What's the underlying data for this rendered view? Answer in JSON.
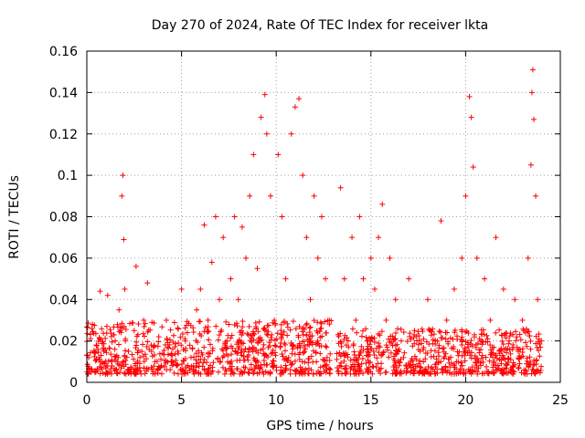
{
  "chart_data": {
    "type": "scatter",
    "title": "Day 270 of 2024, Rate Of TEC Index for receiver lkta",
    "xlabel": "GPS time / hours",
    "ylabel": "ROTI / TECUs",
    "xlim": [
      0,
      25
    ],
    "ylim": [
      0,
      0.16
    ],
    "x_ticks": [
      0,
      5,
      10,
      15,
      20,
      25
    ],
    "y_ticks": [
      0,
      0.02,
      0.04,
      0.06,
      0.08,
      0.1,
      0.12,
      0.14,
      0.16
    ],
    "x_tick_labels": [
      "0",
      "5",
      "10",
      "15",
      "20",
      "25"
    ],
    "y_tick_labels": [
      "0",
      "0.02",
      "0.04",
      "0.06",
      "0.08",
      "0.1",
      "0.12",
      "0.14",
      "0.16"
    ],
    "grid": true,
    "marker": "+",
    "color": "#ff0000",
    "series": [
      {
        "name": "ROTI",
        "points": [
          [
            0.1,
            0.012
          ],
          [
            0.3,
            0.028
          ],
          [
            0.5,
            0.018
          ],
          [
            0.7,
            0.044
          ],
          [
            0.9,
            0.015
          ],
          [
            1.1,
            0.042
          ],
          [
            1.3,
            0.01
          ],
          [
            1.5,
            0.02
          ],
          [
            1.7,
            0.035
          ],
          [
            1.85,
            0.09
          ],
          [
            1.9,
            0.1
          ],
          [
            1.95,
            0.069
          ],
          [
            2.0,
            0.045
          ],
          [
            2.2,
            0.015
          ],
          [
            2.5,
            0.025
          ],
          [
            2.6,
            0.056
          ],
          [
            2.8,
            0.012
          ],
          [
            3.0,
            0.03
          ],
          [
            3.2,
            0.048
          ],
          [
            3.4,
            0.018
          ],
          [
            3.6,
            0.01
          ],
          [
            3.8,
            0.022
          ],
          [
            4.0,
            0.014
          ],
          [
            4.2,
            0.03
          ],
          [
            4.5,
            0.01
          ],
          [
            4.8,
            0.015
          ],
          [
            5.0,
            0.045
          ],
          [
            5.2,
            0.02
          ],
          [
            5.5,
            0.012
          ],
          [
            5.8,
            0.035
          ],
          [
            6.0,
            0.045
          ],
          [
            6.2,
            0.076
          ],
          [
            6.4,
            0.03
          ],
          [
            6.6,
            0.058
          ],
          [
            6.8,
            0.08
          ],
          [
            7.0,
            0.04
          ],
          [
            7.2,
            0.07
          ],
          [
            7.4,
            0.02
          ],
          [
            7.6,
            0.05
          ],
          [
            7.8,
            0.08
          ],
          [
            8.0,
            0.04
          ],
          [
            8.2,
            0.075
          ],
          [
            8.4,
            0.06
          ],
          [
            8.6,
            0.09
          ],
          [
            8.8,
            0.11
          ],
          [
            9.0,
            0.055
          ],
          [
            9.2,
            0.128
          ],
          [
            9.4,
            0.139
          ],
          [
            9.5,
            0.12
          ],
          [
            9.7,
            0.09
          ],
          [
            9.9,
            0.03
          ],
          [
            10.1,
            0.11
          ],
          [
            10.3,
            0.08
          ],
          [
            10.5,
            0.05
          ],
          [
            10.8,
            0.12
          ],
          [
            11.0,
            0.133
          ],
          [
            11.2,
            0.137
          ],
          [
            11.4,
            0.1
          ],
          [
            11.6,
            0.07
          ],
          [
            11.8,
            0.04
          ],
          [
            12.0,
            0.09
          ],
          [
            12.2,
            0.06
          ],
          [
            12.4,
            0.08
          ],
          [
            12.6,
            0.05
          ],
          [
            12.8,
            0.03
          ],
          [
            13.4,
            0.094
          ],
          [
            13.6,
            0.05
          ],
          [
            13.8,
            0.02
          ],
          [
            14.0,
            0.07
          ],
          [
            14.2,
            0.03
          ],
          [
            14.4,
            0.08
          ],
          [
            14.6,
            0.05
          ],
          [
            14.8,
            0.02
          ],
          [
            15.0,
            0.06
          ],
          [
            15.2,
            0.045
          ],
          [
            15.4,
            0.07
          ],
          [
            15.6,
            0.086
          ],
          [
            15.8,
            0.03
          ],
          [
            16.0,
            0.06
          ],
          [
            16.3,
            0.04
          ],
          [
            16.6,
            0.02
          ],
          [
            17.0,
            0.05
          ],
          [
            17.3,
            0.025
          ],
          [
            17.6,
            0.015
          ],
          [
            18.0,
            0.04
          ],
          [
            18.4,
            0.02
          ],
          [
            18.7,
            0.078
          ],
          [
            19.0,
            0.03
          ],
          [
            19.4,
            0.045
          ],
          [
            19.8,
            0.06
          ],
          [
            20.0,
            0.09
          ],
          [
            20.2,
            0.138
          ],
          [
            20.3,
            0.128
          ],
          [
            20.4,
            0.104
          ],
          [
            20.6,
            0.06
          ],
          [
            20.8,
            0.02
          ],
          [
            21.0,
            0.05
          ],
          [
            21.3,
            0.03
          ],
          [
            21.6,
            0.07
          ],
          [
            22.0,
            0.045
          ],
          [
            22.3,
            0.02
          ],
          [
            22.6,
            0.04
          ],
          [
            23.0,
            0.03
          ],
          [
            23.3,
            0.06
          ],
          [
            23.45,
            0.105
          ],
          [
            23.5,
            0.14
          ],
          [
            23.55,
            0.151
          ],
          [
            23.6,
            0.127
          ],
          [
            23.7,
            0.09
          ],
          [
            23.8,
            0.04
          ],
          [
            24.0,
            0.02
          ]
        ]
      }
    ],
    "dense_band": [
      {
        "x_start": 0.0,
        "x_end": 12.9,
        "low": 0.004,
        "high": 0.03
      },
      {
        "x_start": 13.2,
        "x_end": 24.0,
        "low": 0.004,
        "high": 0.026
      }
    ]
  }
}
